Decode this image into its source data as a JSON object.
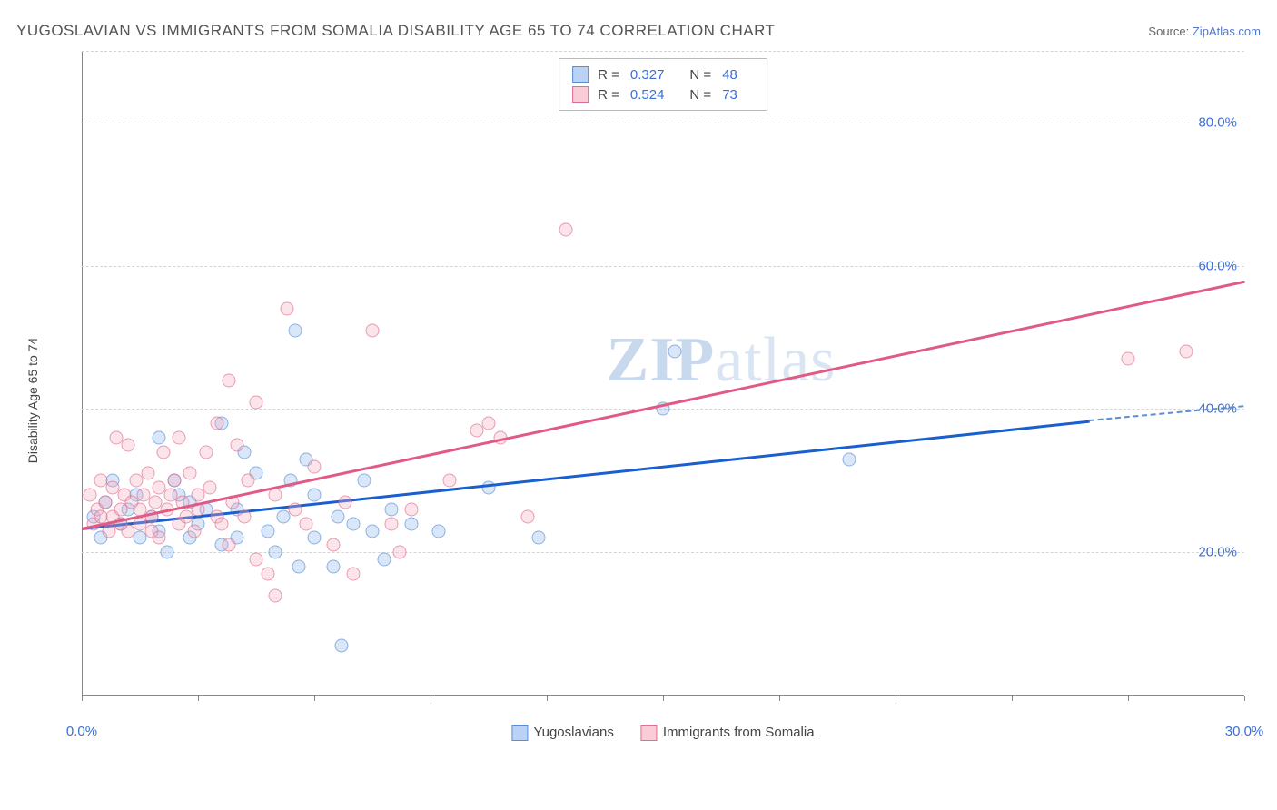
{
  "title": "YUGOSLAVIAN VS IMMIGRANTS FROM SOMALIA DISABILITY AGE 65 TO 74 CORRELATION CHART",
  "source_label": "Source:",
  "source_name": "ZipAtlas.com",
  "watermark": "ZIPatlas",
  "chart": {
    "type": "scatter",
    "ylabel": "Disability Age 65 to 74",
    "xlim": [
      0,
      30
    ],
    "ylim": [
      0,
      90
    ],
    "x_ticks": [
      0,
      3,
      6,
      9,
      12,
      15,
      18,
      21,
      24,
      27,
      30
    ],
    "x_tick_labels": [
      {
        "v": 0,
        "t": "0.0%"
      },
      {
        "v": 30,
        "t": "30.0%"
      }
    ],
    "y_gridlines": [
      20,
      40,
      60,
      80,
      90
    ],
    "y_tick_labels": [
      {
        "v": 20,
        "t": "20.0%"
      },
      {
        "v": 40,
        "t": "40.0%"
      },
      {
        "v": 60,
        "t": "60.0%"
      },
      {
        "v": 80,
        "t": "80.0%"
      }
    ],
    "background_color": "#ffffff",
    "grid_color": "#d5d5d5",
    "axis_color": "#888888",
    "tick_label_color": "#3b6fd6",
    "label_fontsize": 14,
    "series": [
      {
        "name": "Yugoslavians",
        "color_fill": "rgba(140,180,235,0.45)",
        "color_stroke": "#5a8fd6",
        "cls": "blue",
        "R": "0.327",
        "N": "48",
        "trend": {
          "x1": 0,
          "y1": 23.5,
          "x2": 26,
          "y2": 38.5,
          "dash_x2": 30,
          "dash_y2": 40.5
        },
        "points": [
          [
            0.3,
            25
          ],
          [
            0.5,
            22
          ],
          [
            0.6,
            27
          ],
          [
            0.8,
            30
          ],
          [
            1.0,
            24
          ],
          [
            1.2,
            26
          ],
          [
            1.4,
            28
          ],
          [
            1.5,
            22
          ],
          [
            1.8,
            25
          ],
          [
            2.0,
            36
          ],
          [
            2.0,
            23
          ],
          [
            2.2,
            20
          ],
          [
            2.4,
            30
          ],
          [
            2.5,
            28
          ],
          [
            2.8,
            27
          ],
          [
            2.8,
            22
          ],
          [
            3.0,
            24
          ],
          [
            3.2,
            26
          ],
          [
            3.6,
            38
          ],
          [
            3.6,
            21
          ],
          [
            4.0,
            26
          ],
          [
            4.0,
            22
          ],
          [
            4.2,
            34
          ],
          [
            4.5,
            31
          ],
          [
            4.8,
            23
          ],
          [
            5.0,
            20
          ],
          [
            5.2,
            25
          ],
          [
            5.4,
            30
          ],
          [
            5.5,
            51
          ],
          [
            5.6,
            18
          ],
          [
            5.8,
            33
          ],
          [
            6.0,
            22
          ],
          [
            6.0,
            28
          ],
          [
            6.5,
            18
          ],
          [
            6.6,
            25
          ],
          [
            6.7,
            7
          ],
          [
            7.0,
            24
          ],
          [
            7.3,
            30
          ],
          [
            7.5,
            23
          ],
          [
            7.8,
            19
          ],
          [
            8.0,
            26
          ],
          [
            8.5,
            24
          ],
          [
            9.2,
            23
          ],
          [
            10.5,
            29
          ],
          [
            11.8,
            22
          ],
          [
            15.0,
            40
          ],
          [
            15.3,
            48
          ],
          [
            19.8,
            33
          ]
        ]
      },
      {
        "name": "Immigrants from Somalia",
        "color_fill": "rgba(245,170,190,0.45)",
        "color_stroke": "#e06f8f",
        "cls": "pink",
        "R": "0.524",
        "N": "73",
        "trend": {
          "x1": 0,
          "y1": 23.5,
          "x2": 30,
          "y2": 58
        },
        "points": [
          [
            0.2,
            28
          ],
          [
            0.3,
            24
          ],
          [
            0.4,
            26
          ],
          [
            0.5,
            30
          ],
          [
            0.5,
            25
          ],
          [
            0.6,
            27
          ],
          [
            0.7,
            23
          ],
          [
            0.8,
            29
          ],
          [
            0.8,
            25
          ],
          [
            0.9,
            36
          ],
          [
            1.0,
            26
          ],
          [
            1.0,
            24
          ],
          [
            1.1,
            28
          ],
          [
            1.2,
            35
          ],
          [
            1.2,
            23
          ],
          [
            1.3,
            27
          ],
          [
            1.4,
            30
          ],
          [
            1.5,
            26
          ],
          [
            1.5,
            24
          ],
          [
            1.6,
            28
          ],
          [
            1.7,
            31
          ],
          [
            1.8,
            25
          ],
          [
            1.8,
            23
          ],
          [
            1.9,
            27
          ],
          [
            2.0,
            29
          ],
          [
            2.0,
            22
          ],
          [
            2.1,
            34
          ],
          [
            2.2,
            26
          ],
          [
            2.3,
            28
          ],
          [
            2.4,
            30
          ],
          [
            2.5,
            24
          ],
          [
            2.5,
            36
          ],
          [
            2.6,
            27
          ],
          [
            2.7,
            25
          ],
          [
            2.8,
            31
          ],
          [
            2.9,
            23
          ],
          [
            3.0,
            28
          ],
          [
            3.0,
            26
          ],
          [
            3.2,
            34
          ],
          [
            3.3,
            29
          ],
          [
            3.5,
            25
          ],
          [
            3.5,
            38
          ],
          [
            3.6,
            24
          ],
          [
            3.8,
            21
          ],
          [
            3.8,
            44
          ],
          [
            3.9,
            27
          ],
          [
            4.0,
            35
          ],
          [
            4.2,
            25
          ],
          [
            4.3,
            30
          ],
          [
            4.5,
            19
          ],
          [
            4.5,
            41
          ],
          [
            4.8,
            17
          ],
          [
            5.0,
            28
          ],
          [
            5.0,
            14
          ],
          [
            5.3,
            54
          ],
          [
            5.5,
            26
          ],
          [
            5.8,
            24
          ],
          [
            6.0,
            32
          ],
          [
            6.5,
            21
          ],
          [
            6.8,
            27
          ],
          [
            7.0,
            17
          ],
          [
            7.5,
            51
          ],
          [
            8.0,
            24
          ],
          [
            8.2,
            20
          ],
          [
            8.5,
            26
          ],
          [
            9.5,
            30
          ],
          [
            10.2,
            37
          ],
          [
            10.5,
            38
          ],
          [
            10.8,
            36
          ],
          [
            11.5,
            25
          ],
          [
            12.5,
            65
          ],
          [
            27.0,
            47
          ],
          [
            28.5,
            48
          ]
        ]
      }
    ],
    "legend_bottom": [
      {
        "cls": "blue",
        "label": "Yugoslavians"
      },
      {
        "cls": "pink",
        "label": "Immigrants from Somalia"
      }
    ]
  }
}
